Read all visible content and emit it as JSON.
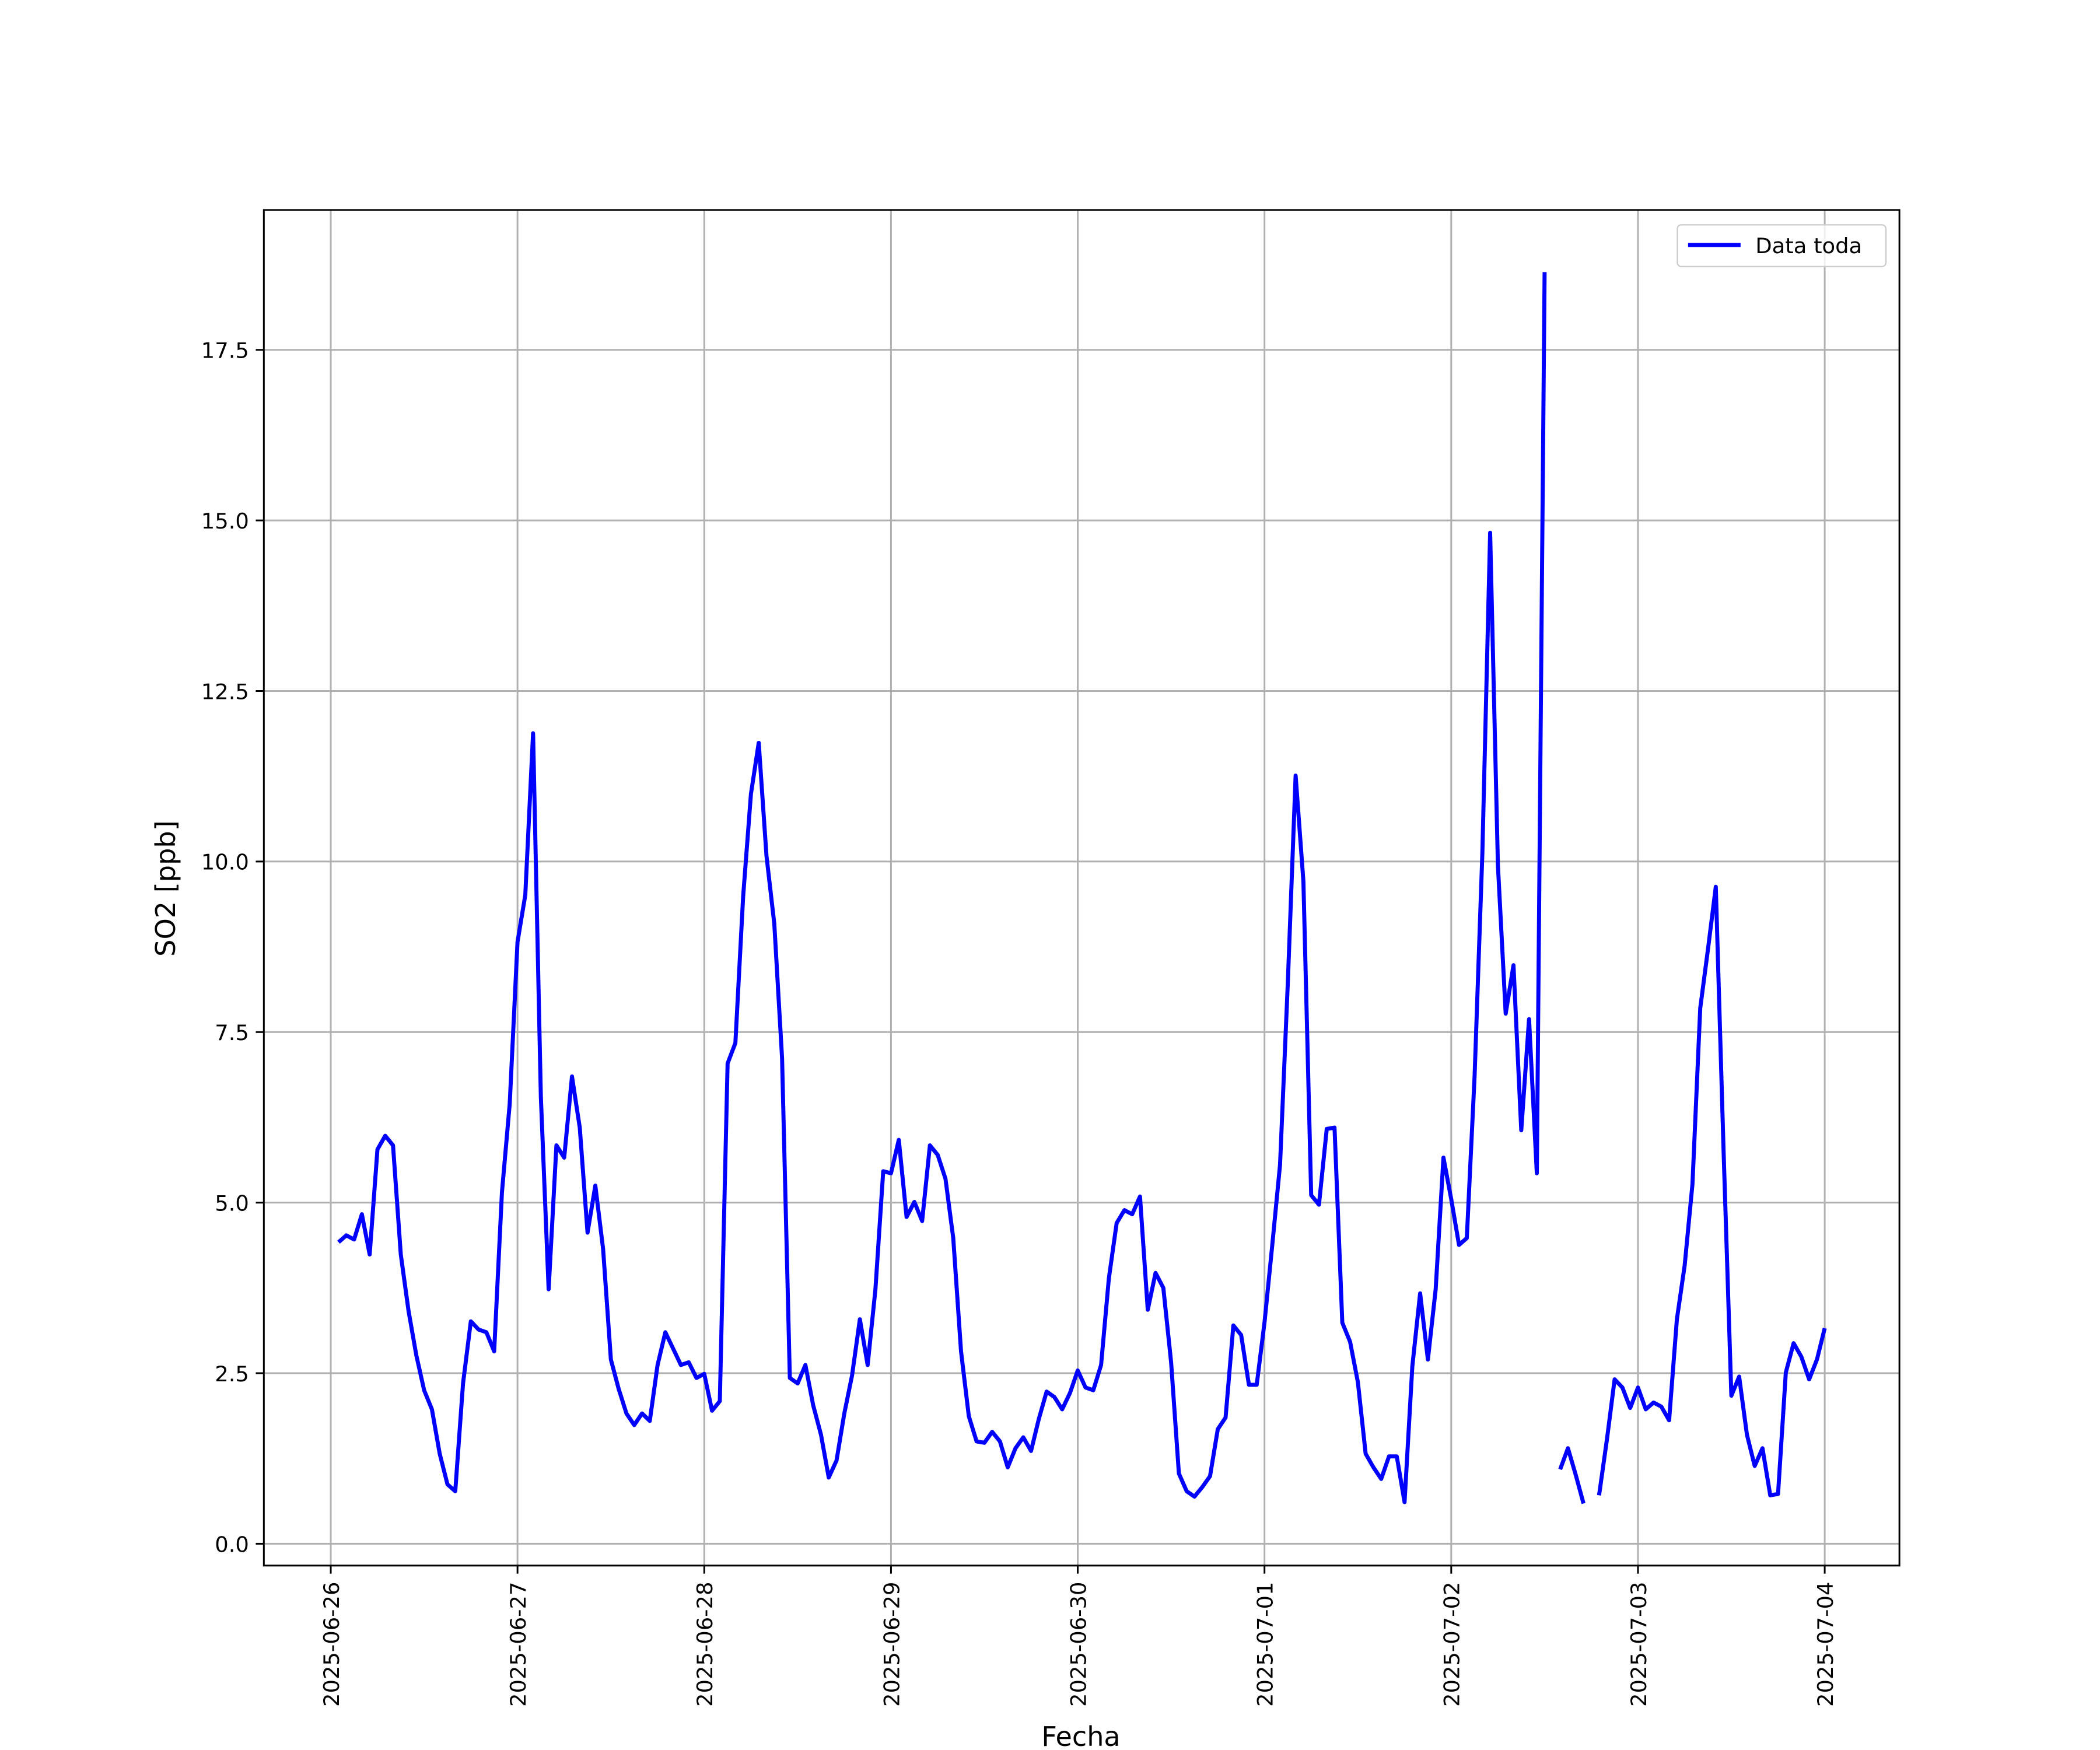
{
  "chart_data": {
    "type": "line",
    "xlabel": "Fecha",
    "ylabel": "SO2 [ppb]",
    "x": [
      "2025-06-26T01:00",
      "2025-06-26T02:00",
      "2025-06-26T03:00",
      "2025-06-26T04:00",
      "2025-06-26T05:00",
      "2025-06-26T06:00",
      "2025-06-26T07:00",
      "2025-06-26T08:00",
      "2025-06-26T09:00",
      "2025-06-26T10:00",
      "2025-06-26T11:00",
      "2025-06-26T12:00",
      "2025-06-26T13:00",
      "2025-06-26T14:00",
      "2025-06-26T15:00",
      "2025-06-26T16:00",
      "2025-06-26T17:00",
      "2025-06-26T18:00",
      "2025-06-26T19:00",
      "2025-06-26T20:00",
      "2025-06-26T21:00",
      "2025-06-26T22:00",
      "2025-06-26T23:00",
      "2025-06-27T00:00",
      "2025-06-27T01:00",
      "2025-06-27T02:00",
      "2025-06-27T03:00",
      "2025-06-27T04:00",
      "2025-06-27T05:00",
      "2025-06-27T06:00",
      "2025-06-27T07:00",
      "2025-06-27T08:00",
      "2025-06-27T09:00",
      "2025-06-27T10:00",
      "2025-06-27T11:00",
      "2025-06-27T12:00",
      "2025-06-27T13:00",
      "2025-06-27T14:00",
      "2025-06-27T15:00",
      "2025-06-27T16:00",
      "2025-06-27T17:00",
      "2025-06-27T18:00",
      "2025-06-27T19:00",
      "2025-06-27T20:00",
      "2025-06-27T21:00",
      "2025-06-27T22:00",
      "2025-06-27T23:00",
      "2025-06-28T00:00",
      "2025-06-28T01:00",
      "2025-06-28T02:00",
      "2025-06-28T03:00",
      "2025-06-28T04:00",
      "2025-06-28T05:00",
      "2025-06-28T06:00",
      "2025-06-28T07:00",
      "2025-06-28T08:00",
      "2025-06-28T09:00",
      "2025-06-28T10:00",
      "2025-06-28T11:00",
      "2025-06-28T12:00",
      "2025-06-28T13:00",
      "2025-06-28T14:00",
      "2025-06-28T15:00",
      "2025-06-28T16:00",
      "2025-06-28T17:00",
      "2025-06-28T18:00",
      "2025-06-28T19:00",
      "2025-06-28T20:00",
      "2025-06-28T21:00",
      "2025-06-28T22:00",
      "2025-06-28T23:00",
      "2025-06-29T00:00",
      "2025-06-29T01:00",
      "2025-06-29T02:00",
      "2025-06-29T03:00",
      "2025-06-29T04:00",
      "2025-06-29T05:00",
      "2025-06-29T06:00",
      "2025-06-29T07:00",
      "2025-06-29T08:00",
      "2025-06-29T09:00",
      "2025-06-29T10:00",
      "2025-06-29T11:00",
      "2025-06-29T12:00",
      "2025-06-29T13:00",
      "2025-06-29T14:00",
      "2025-06-29T15:00",
      "2025-06-29T16:00",
      "2025-06-29T17:00",
      "2025-06-29T18:00",
      "2025-06-29T19:00",
      "2025-06-29T20:00",
      "2025-06-29T21:00",
      "2025-06-29T22:00",
      "2025-06-29T23:00",
      "2025-06-30T00:00",
      "2025-06-30T01:00",
      "2025-06-30T02:00",
      "2025-06-30T03:00",
      "2025-06-30T04:00",
      "2025-06-30T05:00",
      "2025-06-30T06:00",
      "2025-06-30T07:00",
      "2025-06-30T08:00",
      "2025-06-30T09:00",
      "2025-06-30T10:00",
      "2025-06-30T11:00",
      "2025-06-30T12:00",
      "2025-06-30T13:00",
      "2025-06-30T14:00",
      "2025-06-30T15:00",
      "2025-06-30T16:00",
      "2025-06-30T17:00",
      "2025-06-30T18:00",
      "2025-06-30T19:00",
      "2025-06-30T20:00",
      "2025-06-30T21:00",
      "2025-06-30T22:00",
      "2025-06-30T23:00",
      "2025-07-01T00:00",
      "2025-07-01T01:00",
      "2025-07-01T02:00",
      "2025-07-01T03:00",
      "2025-07-01T04:00",
      "2025-07-01T05:00",
      "2025-07-01T06:00",
      "2025-07-01T07:00",
      "2025-07-01T08:00",
      "2025-07-01T09:00",
      "2025-07-01T10:00",
      "2025-07-01T11:00",
      "2025-07-01T12:00",
      "2025-07-01T13:00",
      "2025-07-01T14:00",
      "2025-07-01T15:00",
      "2025-07-01T16:00",
      "2025-07-01T17:00",
      "2025-07-01T18:00",
      "2025-07-01T19:00",
      "2025-07-01T20:00",
      "2025-07-01T21:00",
      "2025-07-01T22:00",
      "2025-07-01T23:00",
      "2025-07-02T00:00",
      "2025-07-02T01:00",
      "2025-07-02T02:00",
      "2025-07-02T03:00",
      "2025-07-02T04:00",
      "2025-07-02T05:00",
      "2025-07-02T06:00",
      "2025-07-02T07:00",
      "2025-07-02T08:00",
      "2025-07-02T09:00",
      "2025-07-02T10:00",
      "2025-07-02T11:00",
      "2025-07-02T12:00",
      "2025-07-02T13:00",
      "2025-07-02T14:00",
      "2025-07-02T15:00",
      "2025-07-02T16:00",
      "2025-07-02T17:00",
      "2025-07-02T18:00",
      "2025-07-02T19:00",
      "2025-07-02T20:00",
      "2025-07-02T21:00",
      "2025-07-02T22:00",
      "2025-07-02T23:00",
      "2025-07-03T00:00",
      "2025-07-03T01:00",
      "2025-07-03T02:00",
      "2025-07-03T03:00",
      "2025-07-03T04:00",
      "2025-07-03T05:00",
      "2025-07-03T06:00",
      "2025-07-03T07:00",
      "2025-07-03T08:00",
      "2025-07-03T09:00",
      "2025-07-03T10:00",
      "2025-07-03T11:00",
      "2025-07-03T12:00",
      "2025-07-03T13:00",
      "2025-07-03T14:00",
      "2025-07-03T15:00",
      "2025-07-03T16:00",
      "2025-07-03T17:00",
      "2025-07-03T18:00",
      "2025-07-03T19:00",
      "2025-07-03T20:00",
      "2025-07-03T21:00",
      "2025-07-03T22:00",
      "2025-07-03T23:00",
      "2025-07-04T00:00"
    ],
    "series": [
      {
        "name": "Data toda",
        "color": "#0000ff",
        "values": [
          4.42,
          4.52,
          4.46,
          4.83,
          4.24,
          5.78,
          5.98,
          5.84,
          4.24,
          3.41,
          2.76,
          2.25,
          1.97,
          1.32,
          0.87,
          0.77,
          2.35,
          3.26,
          3.14,
          3.1,
          2.82,
          5.15,
          6.45,
          8.82,
          9.51,
          11.88,
          6.55,
          3.73,
          5.84,
          5.66,
          6.85,
          6.1,
          4.56,
          5.25,
          4.32,
          2.7,
          2.27,
          1.91,
          1.74,
          1.91,
          1.8,
          2.62,
          3.1,
          2.86,
          2.62,
          2.66,
          2.43,
          2.49,
          1.95,
          2.09,
          7.04,
          7.34,
          9.49,
          10.99,
          11.74,
          10.08,
          9.09,
          7.12,
          2.43,
          2.35,
          2.62,
          2.03,
          1.6,
          0.97,
          1.22,
          1.91,
          2.47,
          3.29,
          2.62,
          3.73,
          5.46,
          5.43,
          5.92,
          4.79,
          5.01,
          4.73,
          5.84,
          5.7,
          5.35,
          4.48,
          2.82,
          1.87,
          1.5,
          1.48,
          1.64,
          1.5,
          1.12,
          1.4,
          1.56,
          1.36,
          1.83,
          2.23,
          2.15,
          1.97,
          2.21,
          2.54,
          2.29,
          2.25,
          2.62,
          3.89,
          4.7,
          4.89,
          4.83,
          5.09,
          3.43,
          3.97,
          3.75,
          2.66,
          1.03,
          0.77,
          0.69,
          0.83,
          0.99,
          1.68,
          1.85,
          3.2,
          3.06,
          2.33,
          2.33,
          3.24,
          4.38,
          5.56,
          8.23,
          11.26,
          9.71,
          5.11,
          4.97,
          6.08,
          6.1,
          3.24,
          2.96,
          2.37,
          1.32,
          1.12,
          0.95,
          1.28,
          1.28,
          0.61,
          2.6,
          3.67,
          2.7,
          3.73,
          5.66,
          5.05,
          4.38,
          4.48,
          6.85,
          10.12,
          14.82,
          9.94,
          7.77,
          8.48,
          6.06,
          7.69,
          5.43,
          18.64,
          null,
          1.09,
          1.4,
          1.01,
          0.59,
          null,
          0.71,
          1.52,
          2.41,
          2.29,
          1.99,
          2.29,
          1.97,
          2.07,
          2.01,
          1.81,
          3.29,
          4.08,
          5.27,
          7.85,
          8.72,
          9.63,
          5.76,
          2.17,
          2.45,
          1.6,
          1.14,
          1.4,
          0.71,
          0.73,
          2.51,
          2.94,
          2.74,
          2.41,
          2.7,
          3.16
        ]
      }
    ],
    "xlim": [
      "2025-06-25T15:24",
      "2025-07-04T09:36"
    ],
    "xticks": [
      "2025-06-26",
      "2025-06-27",
      "2025-06-28",
      "2025-06-29",
      "2025-06-30",
      "2025-07-01",
      "2025-07-02",
      "2025-07-03",
      "2025-07-04"
    ],
    "ylim": [
      -0.32,
      19.55
    ],
    "yticks": [
      {
        "value": 0,
        "label": "0.0"
      },
      2.5,
      {
        "value": 5,
        "label": "5.0"
      },
      7.5,
      {
        "value": 10,
        "label": "10.0"
      },
      12.5,
      {
        "value": 15,
        "label": "15.0"
      },
      17.5
    ],
    "grid": true,
    "legend": "upper right"
  }
}
